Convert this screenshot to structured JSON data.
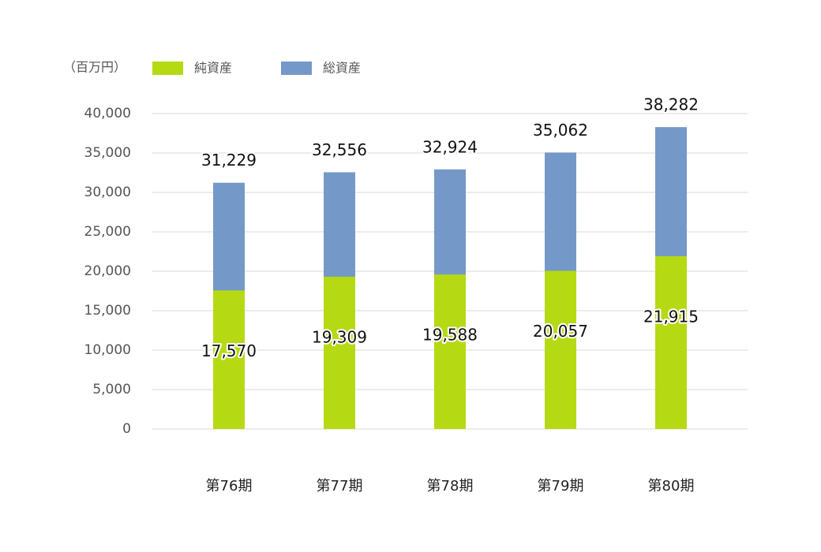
{
  "chart_data": {
    "type": "bar",
    "y_axis_label": "（百万円）",
    "categories": [
      "第76期",
      "第77期",
      "第78期",
      "第79期",
      "第80期"
    ],
    "series": [
      {
        "name": "純資産",
        "color": "#b5da14",
        "values": [
          17570,
          19309,
          19588,
          20057,
          21915
        ],
        "value_labels": [
          "17,570",
          "19,309",
          "19,588",
          "20,057",
          "21,915"
        ]
      },
      {
        "name": "総資産",
        "color": "#7499c8",
        "values": [
          31229,
          32556,
          32924,
          35062,
          38282
        ],
        "value_labels": [
          "31,229",
          "32,556",
          "32,924",
          "35,062",
          "38,282"
        ]
      }
    ],
    "ylim": [
      0,
      40000
    ],
    "yticks": [
      0,
      {
        "value": 5000,
        "label": "5,000"
      },
      {
        "value": 10000,
        "label": "10,000"
      },
      {
        "value": 15000,
        "label": "15,000"
      },
      {
        "value": 20000,
        "label": "20,000"
      },
      {
        "value": 25000,
        "label": "25,000"
      },
      {
        "value": 30000,
        "label": "30,000"
      },
      {
        "value": 35000,
        "label": "35,000"
      },
      {
        "value": 40000,
        "label": "40,000"
      }
    ],
    "grid": true
  }
}
